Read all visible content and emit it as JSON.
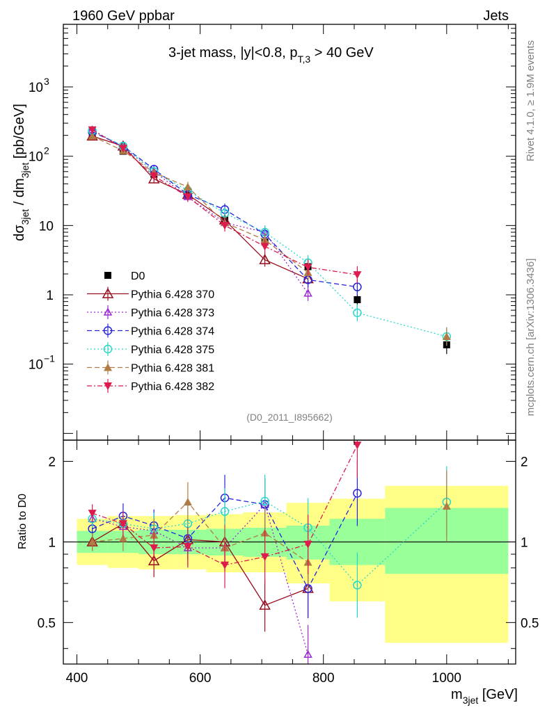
{
  "header": {
    "left": "1960 GeV ppbar",
    "right": "Jets"
  },
  "side_labels": {
    "rivet": "Rivet 4.1.0, ≥ 1.9M events",
    "mcplots": "mcplots.cern.ch [arXiv:1306.3436]"
  },
  "watermark": "(D0_2011_I895662)",
  "colors": {
    "D0": "#000000",
    "370": "#990e1e",
    "373": "#9b27d1",
    "374": "#2424dd",
    "375": "#27d8c8",
    "381": "#b07b44",
    "382": "#dd1b4d",
    "band_inner": "#99ff99",
    "band_outer": "#ffff88"
  },
  "chart_data": [
    {
      "type": "scatter",
      "panel": "main",
      "title": "3-jet mass, |y|<0.8, p_{T,3} > 40 GeV",
      "title_parts": {
        "main": "3-jet mass, |y|<0.8, p",
        "sub": "T,3",
        "tail": " > 40 GeV"
      },
      "xlabel": "m_{3jet} [GeV]",
      "xlabel_parts": {
        "main": "m",
        "sub": "3jet",
        "tail": " [GeV]"
      },
      "ylabel": "dσ_{3jet} / dm_{3jet} [pb/GeV]",
      "ylabel_parts": {
        "a": "dσ",
        "b": "3jet",
        "c": " / dm",
        "d": "3jet",
        "e": " [pb/GeV]"
      },
      "yscale": "log",
      "xlim": [
        378,
        1112
      ],
      "ylim": [
        0.008,
        8000
      ],
      "y_ticks": [
        {
          "value": 0.1,
          "label": "10",
          "exp": "−1"
        },
        {
          "value": 1,
          "label": "1",
          "exp": ""
        },
        {
          "value": 10,
          "label": "10",
          "exp": ""
        },
        {
          "value": 100,
          "label": "10",
          "exp": "2"
        },
        {
          "value": 1000,
          "label": "10",
          "exp": "3"
        }
      ],
      "x_ticks": [
        400,
        600,
        800,
        1000
      ],
      "x": [
        425,
        475,
        525,
        580,
        640,
        705,
        775,
        855,
        1000
      ],
      "legend_position": "left-middle",
      "series": [
        {
          "name": "D0",
          "key": "D0",
          "marker": "square",
          "dash": "",
          "values": [
            195,
            118,
            55,
            28,
            12,
            5.8,
            2.55,
            0.85,
            0.19
          ]
        },
        {
          "name": "Pythia 6.428 370",
          "key": "370",
          "marker": "triangle-open",
          "dash": "",
          "values": [
            195,
            140,
            47,
            28,
            12,
            3.2,
            1.7,
            null,
            null
          ]
        },
        {
          "name": "Pythia 6.428 373",
          "key": "373",
          "marker": "triangle-open-small",
          "dash": "2,3",
          "values": [
            240,
            135,
            60,
            26,
            11,
            8,
            1.05,
            null,
            null
          ]
        },
        {
          "name": "Pythia 6.428 374",
          "key": "374",
          "marker": "circle-open",
          "dash": "7,4",
          "values": [
            225,
            140,
            65,
            28,
            17,
            7.5,
            1.65,
            1.3,
            null
          ]
        },
        {
          "name": "Pythia 6.428 375",
          "key": "375",
          "marker": "circle-open",
          "dash": "2,3",
          "values": [
            235,
            140,
            60,
            32,
            15,
            8,
            2.9,
            0.55,
            0.25
          ]
        },
        {
          "name": "Pythia 6.428 381",
          "key": "381",
          "marker": "triangle-up",
          "dash": "7,4",
          "values": [
            195,
            120,
            58,
            36,
            11,
            6.2,
            2.1,
            null,
            0.25
          ]
        },
        {
          "name": "Pythia 6.428 382",
          "key": "382",
          "marker": "triangle-down",
          "dash": "7,3,2,3",
          "values": [
            240,
            130,
            52,
            26,
            10,
            5,
            2.5,
            1.95,
            null
          ]
        }
      ]
    },
    {
      "type": "scatter",
      "panel": "ratio",
      "ylabel": "Ratio to D0",
      "yscale": "log",
      "ylim": [
        0.35,
        2.4
      ],
      "y_ticks": [
        0.5,
        1,
        2
      ],
      "x": [
        425,
        475,
        525,
        580,
        640,
        705,
        775,
        855,
        1000
      ],
      "bands": [
        {
          "x_range": [
            400,
            450
          ],
          "inner": [
            0.91,
            1.1
          ],
          "outer": [
            0.82,
            1.22
          ]
        },
        {
          "x_range": [
            450,
            500
          ],
          "inner": [
            0.91,
            1.1
          ],
          "outer": [
            0.8,
            1.25
          ]
        },
        {
          "x_range": [
            500,
            560
          ],
          "inner": [
            0.9,
            1.11
          ],
          "outer": [
            0.79,
            1.25
          ]
        },
        {
          "x_range": [
            560,
            610
          ],
          "inner": [
            0.9,
            1.11
          ],
          "outer": [
            0.79,
            1.26
          ]
        },
        {
          "x_range": [
            610,
            670
          ],
          "inner": [
            0.89,
            1.12
          ],
          "outer": [
            0.77,
            1.27
          ]
        },
        {
          "x_range": [
            670,
            740
          ],
          "inner": [
            0.88,
            1.13
          ],
          "outer": [
            0.77,
            1.29
          ]
        },
        {
          "x_range": [
            740,
            810
          ],
          "inner": [
            0.86,
            1.15
          ],
          "outer": [
            0.7,
            1.4
          ]
        },
        {
          "x_range": [
            810,
            900
          ],
          "inner": [
            0.82,
            1.22
          ],
          "outer": [
            0.6,
            1.45
          ]
        },
        {
          "x_range": [
            900,
            1100
          ],
          "inner": [
            0.76,
            1.34
          ],
          "outer": [
            0.42,
            1.62
          ]
        }
      ],
      "series": [
        {
          "name": "Pythia 6.428 370",
          "key": "370",
          "marker": "triangle-open",
          "dash": "",
          "values": [
            1.0,
            1.17,
            0.85,
            1.02,
            1.0,
            0.58,
            0.67,
            null,
            null
          ]
        },
        {
          "name": "Pythia 6.428 373",
          "key": "373",
          "marker": "triangle-open-small",
          "dash": "2,3",
          "values": [
            1.22,
            1.14,
            1.1,
            0.95,
            0.95,
            1.38,
            0.38,
            null,
            null
          ]
        },
        {
          "name": "Pythia 6.428 374",
          "key": "374",
          "marker": "circle-open",
          "dash": "7,4",
          "values": [
            1.12,
            1.25,
            1.15,
            1.03,
            1.46,
            1.38,
            0.67,
            1.52,
            null
          ]
        },
        {
          "name": "Pythia 6.428 375",
          "key": "375",
          "marker": "circle-open",
          "dash": "2,3",
          "values": [
            1.22,
            1.17,
            1.12,
            1.17,
            1.3,
            1.42,
            1.13,
            0.69,
            1.41
          ]
        },
        {
          "name": "Pythia 6.428 381",
          "key": "381",
          "marker": "triangle-up",
          "dash": "7,4",
          "values": [
            1.0,
            1.03,
            1.06,
            1.41,
            0.95,
            1.08,
            0.84,
            null,
            1.36
          ]
        },
        {
          "name": "Pythia 6.428 382",
          "key": "382",
          "marker": "triangle-down",
          "dash": "7,3,2,3",
          "values": [
            1.28,
            1.17,
            0.95,
            0.96,
            0.82,
            0.88,
            0.98,
            2.3,
            null
          ]
        }
      ]
    }
  ]
}
